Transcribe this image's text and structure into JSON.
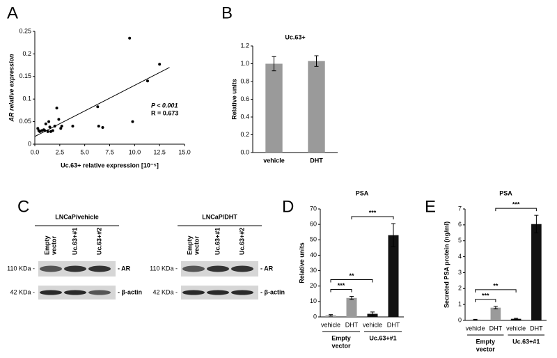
{
  "chart_data": [
    {
      "type": "scatter",
      "panel": "A",
      "x_label": "Uc.63+ relative expression [10⁻⁵]",
      "y_label": "AR relative expression",
      "x": [
        0.3,
        0.4,
        0.5,
        0.7,
        0.9,
        1.0,
        1.1,
        1.3,
        1.4,
        1.5,
        1.6,
        1.8,
        2.0,
        2.2,
        2.4,
        2.6,
        2.7,
        3.8,
        6.3,
        6.4,
        6.8,
        9.5,
        9.8,
        11.3,
        12.5
      ],
      "values": [
        0.035,
        0.03,
        0.028,
        0.03,
        0.032,
        0.03,
        0.045,
        0.028,
        0.05,
        0.038,
        0.028,
        0.03,
        0.04,
        0.08,
        0.055,
        0.035,
        0.04,
        0.04,
        0.083,
        0.04,
        0.037,
        0.235,
        0.05,
        0.14,
        0.177
      ],
      "color": "#000000",
      "fit_line": {
        "x": [
          0,
          13.5
        ],
        "y": [
          0.017,
          0.17
        ]
      },
      "annotations": [
        "P < 0.001",
        "R = 0.673"
      ],
      "xlim": [
        0,
        15
      ],
      "ylim": [
        0,
        0.25
      ],
      "xticks": [
        {
          "value": 0,
          "label": "0.0"
        },
        {
          "value": 2.5,
          "label": "2.5"
        },
        {
          "value": 5,
          "label": "5.0"
        },
        {
          "value": 7.5,
          "label": "7.5"
        },
        {
          "value": 10,
          "label": "10.0"
        },
        {
          "value": 12.5,
          "label": "12.5"
        },
        {
          "value": 15,
          "label": "15.0"
        }
      ],
      "yticks": [
        0,
        0.05,
        0.1,
        0.15,
        0.2,
        0.25
      ]
    },
    {
      "type": "bar",
      "panel": "B",
      "title": "Uc.63+",
      "y_label": "Relative units",
      "categories": [
        "vehicle",
        "DHT"
      ],
      "values": [
        1.0,
        1.03
      ],
      "errors": [
        0.08,
        0.06
      ],
      "colors": [
        "#9a9a9a",
        "#9a9a9a"
      ],
      "ylim": [
        0,
        1.2
      ],
      "yticks": [
        {
          "value": 0,
          "label": "0.0"
        },
        {
          "value": 0.2,
          "label": "0.2"
        },
        {
          "value": 0.4,
          "label": "0.4"
        },
        {
          "value": 0.6,
          "label": "0.6"
        },
        {
          "value": 0.8,
          "label": "0.8"
        },
        {
          "value": 1.0,
          "label": "1.0"
        },
        {
          "value": 1.2,
          "label": "1.2"
        }
      ]
    },
    {
      "type": "bar",
      "panel": "D",
      "title": "PSA",
      "y_label": "Relative units",
      "categories": [
        "vehicle",
        "DHT",
        "vehicle",
        "DHT"
      ],
      "values": [
        1,
        12.3,
        2,
        53
      ],
      "errors": [
        0.5,
        1,
        1.2,
        7.5
      ],
      "colors": [
        "#9a9a9a",
        "#9a9a9a",
        "#111111",
        "#111111"
      ],
      "groups": [
        {
          "label": [
            "Empty",
            "vector"
          ],
          "members": [
            0,
            1
          ]
        },
        {
          "label": [
            "Uc.63+#1"
          ],
          "members": [
            2,
            3
          ]
        }
      ],
      "significance": [
        {
          "from": 0,
          "to": 1,
          "label": "***"
        },
        {
          "from": 0,
          "to": 2,
          "label": "**"
        },
        {
          "from": 1,
          "to": 3,
          "label": "***"
        }
      ],
      "ylim": [
        0,
        70
      ],
      "yticks": [
        0,
        10,
        20,
        30,
        40,
        50,
        60,
        70
      ]
    },
    {
      "type": "bar",
      "panel": "E",
      "title": "PSA",
      "y_label": "Secreted PSA protein (ng/ml)",
      "categories": [
        "vehicle",
        "DHT",
        "vehicle",
        "DHT"
      ],
      "values": [
        0.05,
        0.8,
        0.1,
        6.05
      ],
      "errors": [
        0.02,
        0.08,
        0.03,
        0.55
      ],
      "colors": [
        "#9a9a9a",
        "#9a9a9a",
        "#111111",
        "#111111"
      ],
      "groups": [
        {
          "label": [
            "Empty",
            "vector"
          ],
          "members": [
            0,
            1
          ]
        },
        {
          "label": [
            "Uc.63+#1"
          ],
          "members": [
            2,
            3
          ]
        }
      ],
      "significance": [
        {
          "from": 0,
          "to": 1,
          "label": "***"
        },
        {
          "from": 0,
          "to": 2,
          "label": "**"
        },
        {
          "from": 1,
          "to": 3,
          "label": "***"
        }
      ],
      "ylim": [
        0,
        7
      ],
      "yticks": [
        0,
        1,
        2,
        3,
        4,
        5,
        6,
        7
      ]
    }
  ],
  "blot": {
    "panel": "C",
    "conditions": [
      "LNCaP/vehicle",
      "LNCaP/DHT"
    ],
    "lanes": [
      [
        "Empty",
        "vector"
      ],
      [
        "Uc.63+#1"
      ],
      [
        "Uc.63+#2"
      ]
    ],
    "markers": [
      "110 KDa -",
      "42 KDa -"
    ],
    "proteins": [
      "- AR",
      "- β-actin"
    ]
  }
}
